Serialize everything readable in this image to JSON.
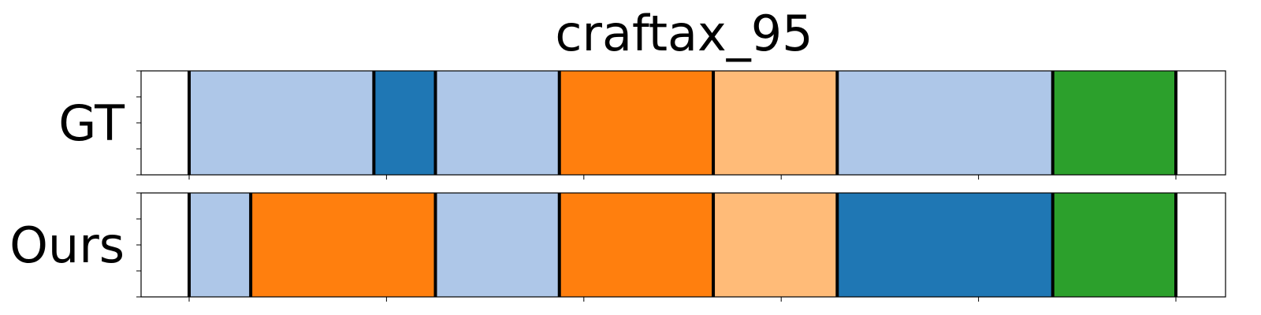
{
  "chart_data": {
    "type": "segment-bar",
    "title": "craftax_95",
    "x_range": [
      0,
      1375
    ],
    "x_ticks": [
      0,
      250,
      500,
      750,
      1000,
      1250
    ],
    "colors": {
      "light_blue": "#aec7e8",
      "blue": "#1f77b4",
      "orange": "#ff7f0e",
      "light_orange": "#ffbb78",
      "green": "#2ca02c"
    },
    "rows": [
      {
        "label": "GT",
        "segments": [
          {
            "start": 0,
            "end": 234,
            "color": "light_blue"
          },
          {
            "start": 234,
            "end": 312,
            "color": "blue"
          },
          {
            "start": 312,
            "end": 469,
            "color": "light_blue"
          },
          {
            "start": 469,
            "end": 664,
            "color": "orange"
          },
          {
            "start": 664,
            "end": 821,
            "color": "light_orange"
          },
          {
            "start": 821,
            "end": 1094,
            "color": "light_blue"
          },
          {
            "start": 1094,
            "end": 1250,
            "color": "green"
          }
        ]
      },
      {
        "label": "Ours",
        "segments": [
          {
            "start": 0,
            "end": 78,
            "color": "light_blue"
          },
          {
            "start": 78,
            "end": 312,
            "color": "orange"
          },
          {
            "start": 312,
            "end": 469,
            "color": "light_blue"
          },
          {
            "start": 469,
            "end": 664,
            "color": "orange"
          },
          {
            "start": 664,
            "end": 821,
            "color": "light_orange"
          },
          {
            "start": 821,
            "end": 1094,
            "color": "blue"
          },
          {
            "start": 1094,
            "end": 1250,
            "color": "green"
          }
        ]
      }
    ]
  }
}
